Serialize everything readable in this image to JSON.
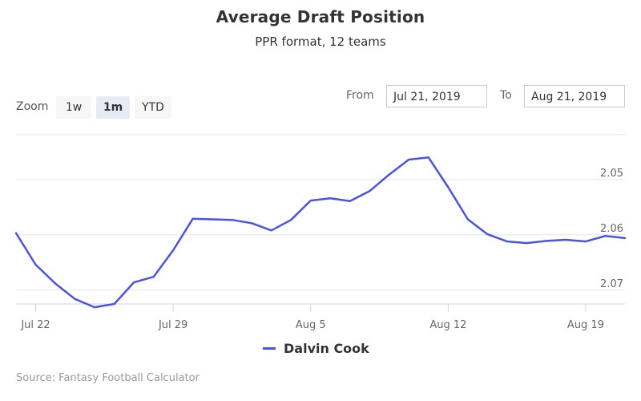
{
  "header": {
    "title": "Average Draft Position",
    "subtitle": "PPR format, 12 teams"
  },
  "range_selector": {
    "zoom_label": "Zoom",
    "buttons": [
      {
        "label": "1w",
        "active": false
      },
      {
        "label": "1m",
        "active": true
      },
      {
        "label": "YTD",
        "active": false
      }
    ],
    "from_label": "From",
    "from_value": "Jul 21, 2019",
    "to_label": "To",
    "to_value": "Aug 21, 2019"
  },
  "credits": "Source: Fantasy Football Calculator",
  "colors": {
    "series": "#4a54e1",
    "grid": "#e6e6e6"
  },
  "chart_data": {
    "type": "line",
    "title": "Average Draft Position",
    "subtitle": "PPR format, 12 teams",
    "x_axis": {
      "ticks": [
        "Jul 22",
        "Jul 29",
        "Aug 5",
        "Aug 12",
        "Aug 19"
      ],
      "range": [
        "2019-07-21",
        "2019-08-21"
      ]
    },
    "y_axis": {
      "reversed": true,
      "ticks": [
        "2.05",
        "2.06",
        "2.07"
      ],
      "range": [
        2.039,
        2.0725
      ]
    },
    "grid": true,
    "legend": "bottom-center",
    "series": [
      {
        "name": "Dalvin Cook",
        "x": [
          "2019-07-21",
          "2019-07-22",
          "2019-07-23",
          "2019-07-24",
          "2019-07-25",
          "2019-07-26",
          "2019-07-27",
          "2019-07-28",
          "2019-07-29",
          "2019-07-30",
          "2019-07-31",
          "2019-08-01",
          "2019-08-02",
          "2019-08-03",
          "2019-08-04",
          "2019-08-05",
          "2019-08-06",
          "2019-08-07",
          "2019-08-08",
          "2019-08-09",
          "2019-08-10",
          "2019-08-11",
          "2019-08-12",
          "2019-08-13",
          "2019-08-14",
          "2019-08-15",
          "2019-08-16",
          "2019-08-17",
          "2019-08-18",
          "2019-08-19",
          "2019-08-20",
          "2019-08-21"
        ],
        "values": [
          2.0597,
          2.0654,
          2.0688,
          2.0716,
          2.0731,
          2.0725,
          2.0686,
          2.0676,
          2.0628,
          2.0571,
          2.0572,
          2.0573,
          2.0579,
          2.0592,
          2.0573,
          2.0538,
          2.0534,
          2.0539,
          2.0521,
          2.0491,
          2.0464,
          2.046,
          2.0514,
          2.0572,
          2.0599,
          2.0612,
          2.0615,
          2.0611,
          2.0609,
          2.0612,
          2.0602,
          2.0606
        ]
      }
    ]
  }
}
